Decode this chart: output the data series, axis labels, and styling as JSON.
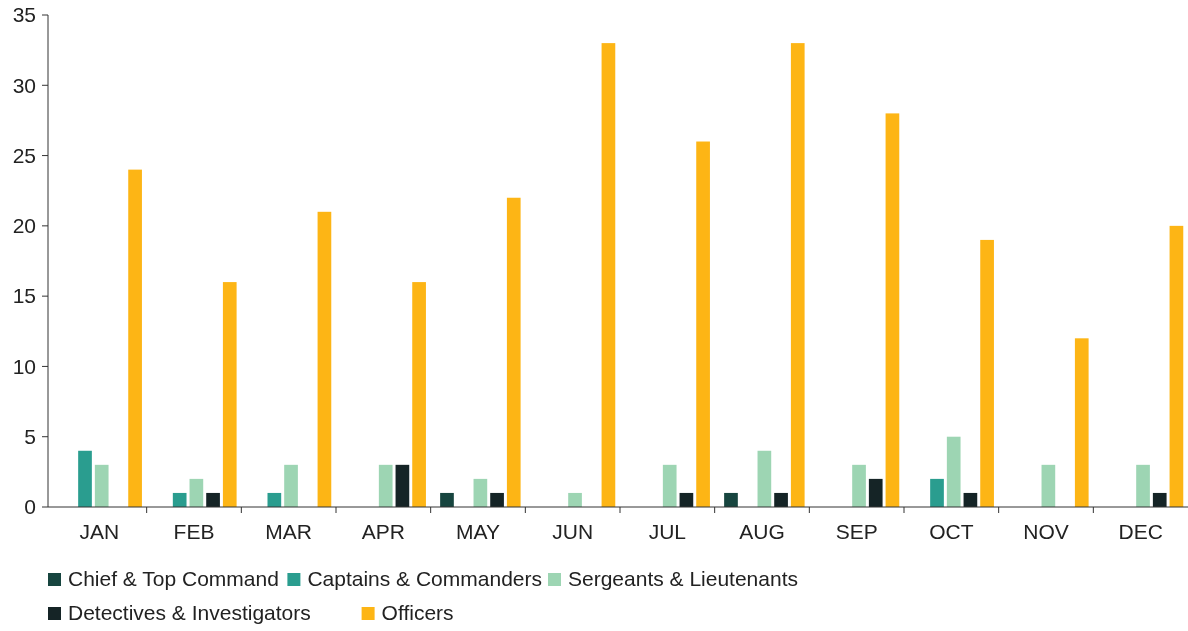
{
  "chart_data": {
    "type": "bar",
    "categories": [
      "JAN",
      "FEB",
      "MAR",
      "APR",
      "MAY",
      "JUN",
      "JUL",
      "AUG",
      "SEP",
      "OCT",
      "NOV",
      "DEC"
    ],
    "series": [
      {
        "name": "Chief & Top Command",
        "color": "#17453f",
        "values": [
          0,
          0,
          0,
          0,
          1,
          0,
          0,
          1,
          0,
          0,
          0,
          0
        ]
      },
      {
        "name": "Captains & Commanders",
        "color": "#2a9d8f",
        "values": [
          4,
          1,
          1,
          0,
          0,
          0,
          0,
          0,
          0,
          2,
          0,
          0
        ]
      },
      {
        "name": "Sergeants & Lieutenants",
        "color": "#9dd5b3",
        "values": [
          3,
          2,
          3,
          3,
          2,
          1,
          3,
          4,
          3,
          5,
          3,
          3
        ]
      },
      {
        "name": "Detectives & Investigators",
        "color": "#152426",
        "values": [
          0,
          1,
          0,
          3,
          1,
          0,
          1,
          1,
          2,
          1,
          0,
          1
        ]
      },
      {
        "name": "Officers",
        "color": "#fdb515",
        "values": [
          24,
          16,
          21,
          16,
          22,
          33,
          26,
          33,
          28,
          19,
          12,
          20
        ]
      }
    ],
    "ylim": [
      0,
      35
    ],
    "yticks": [
      0,
      5,
      10,
      15,
      20,
      25,
      30,
      35
    ],
    "grid": false,
    "legend": "bottom"
  }
}
